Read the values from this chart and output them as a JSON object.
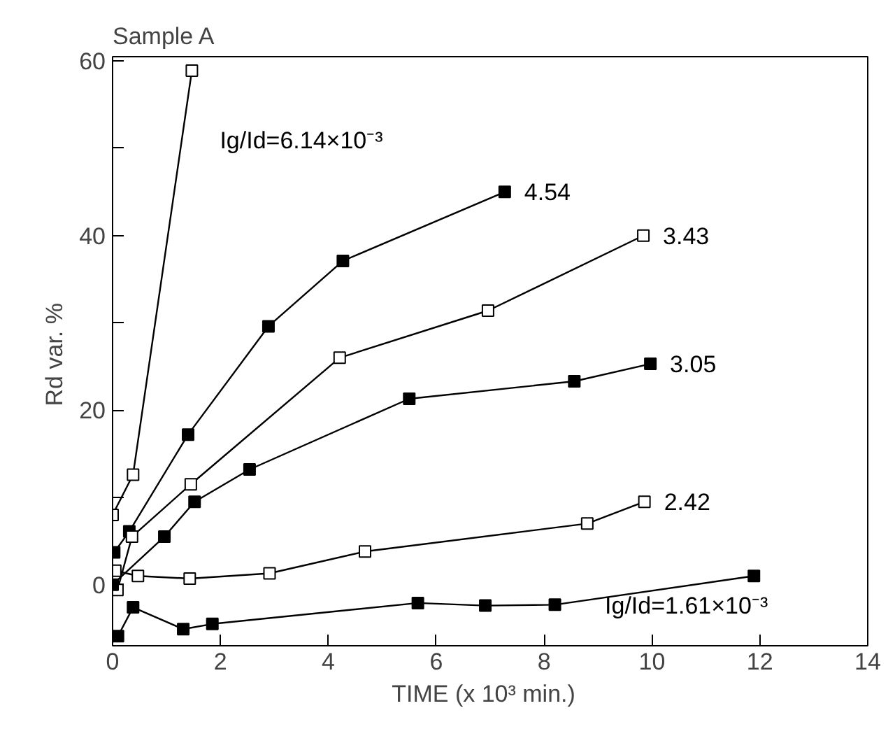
{
  "chart_data": {
    "type": "line",
    "title": "Sample A",
    "xlabel": "TIME   (x 10³ min.)",
    "ylabel": "Rd var.  %",
    "xlim": [
      0,
      14
    ],
    "xticks": [
      0,
      2,
      4,
      6,
      8,
      10,
      12,
      14
    ],
    "ylim": [
      -7,
      60.5
    ],
    "yticks": [
      0,
      {
        "value": 10,
        "label": null
      },
      20,
      {
        "value": 30,
        "label": null
      },
      40,
      {
        "value": 50,
        "label": null
      },
      60
    ],
    "grid": false,
    "line_style": "solid",
    "series": [
      {
        "name": "Ig/Id=6.14×10⁻³",
        "color": "#000000",
        "marker": "square_open",
        "x": [
          0,
          0.38,
          1.47
        ],
        "values": [
          8.0,
          12.6,
          58.9
        ]
      },
      {
        "name": "4.54",
        "color": "#000000",
        "marker": "square",
        "x": [
          0.03,
          0.31,
          1.4,
          2.89,
          4.27,
          7.27
        ],
        "values": [
          3.7,
          6.1,
          17.2,
          29.6,
          37.1,
          45.0
        ]
      },
      {
        "name": "3.43",
        "color": "#000000",
        "marker": "square_open",
        "x": [
          0.09,
          0.36,
          1.45,
          4.21,
          6.96,
          9.84
        ],
        "values": [
          -0.6,
          5.5,
          11.5,
          26.0,
          31.4,
          40.0
        ]
      },
      {
        "name": "3.05",
        "color": "#000000",
        "marker": "square",
        "x": [
          0,
          0.96,
          1.52,
          2.54,
          5.5,
          8.56,
          9.97
        ],
        "values": [
          0,
          5.5,
          9.5,
          13.2,
          21.3,
          23.3,
          25.3
        ]
      },
      {
        "name": "2.42",
        "color": "#000000",
        "marker": "square_open",
        "x": [
          0.05,
          0.47,
          1.43,
          2.91,
          4.68,
          8.8,
          9.86
        ],
        "values": [
          1.6,
          1.0,
          0.7,
          1.3,
          3.8,
          7.0,
          9.5
        ]
      },
      {
        "name": "Ig/Id=1.61×10⁻³",
        "color": "#000000",
        "marker": "square",
        "x": [
          0.1,
          0.38,
          1.31,
          1.85,
          5.66,
          6.91,
          8.2,
          11.89
        ],
        "values": [
          -5.9,
          -2.6,
          -5.1,
          -4.5,
          -2.1,
          -2.4,
          -2.3,
          1.0
        ]
      }
    ]
  }
}
